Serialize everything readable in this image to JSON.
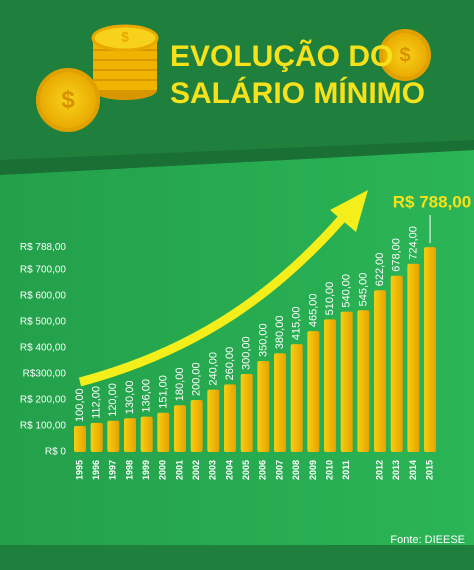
{
  "chart_data": {
    "type": "bar",
    "title": [
      "EVOLUÇÃO DO",
      "SALÁRIO MÍNIMO"
    ],
    "source": "Fonte: DIEESE",
    "categories": [
      "1995",
      "1996",
      "1997",
      "1998",
      "1999",
      "2000",
      "2001",
      "2002",
      "2003",
      "2004",
      "2005",
      "2006",
      "2007",
      "2008",
      "2009",
      "2010",
      "2011",
      null,
      "2012",
      "2013",
      "2014",
      "2015"
    ],
    "values": [
      100,
      112,
      120,
      130,
      136,
      151,
      180,
      200,
      240,
      260,
      300,
      350,
      380,
      415,
      465,
      510,
      540,
      545,
      622,
      678,
      724,
      788
    ],
    "value_labels": [
      "100,00",
      "112,00",
      "120,00",
      "130,00",
      "136,00",
      "151,00",
      "180,00",
      "200,00",
      "240,00",
      "260,00",
      "300,00",
      "350,00",
      "380,00",
      "415,00",
      "465,00",
      "510,00",
      "540,00",
      "545,00",
      "622,00",
      "678,00",
      "724,00",
      "R$ 788,00"
    ],
    "color": "#f2b705",
    "ylim": [
      0,
      800
    ],
    "yticks": [
      {
        "value": 0,
        "label": "R$ 0"
      },
      {
        "value": 100,
        "label": "R$ 100,00"
      },
      {
        "value": 200,
        "label": "R$ 200,00"
      },
      {
        "value": 300,
        "label": "R$300,00"
      },
      {
        "value": 400,
        "label": "R$ 400,00"
      },
      {
        "value": 500,
        "label": "R$ 500,00"
      },
      {
        "value": 600,
        "label": "R$ 600,00"
      },
      {
        "value": 700,
        "label": "R$ 700,00"
      },
      {
        "value": 788,
        "label": "R$ 788,00"
      }
    ],
    "grid": false
  }
}
